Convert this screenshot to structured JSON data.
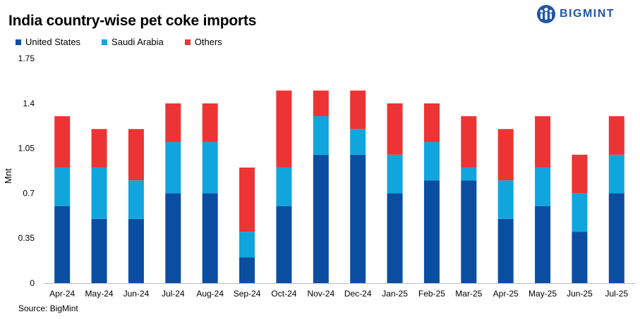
{
  "title": "India country-wise pet coke imports",
  "brand": {
    "name": "BIGMINT",
    "color": "#1f57a8"
  },
  "source": "Source: BigMint",
  "chart_data": {
    "type": "bar",
    "stacked": true,
    "title": "India country-wise pet coke imports",
    "xlabel": "",
    "ylabel": "Mnt",
    "ylim": [
      0,
      1.75
    ],
    "yticks": [
      "0",
      "0.35",
      "0.7",
      "1.05",
      "1.4",
      "1.75"
    ],
    "ytick_values": [
      0,
      0.35,
      0.7,
      1.05,
      1.4,
      1.75
    ],
    "grid": false,
    "legend": "top-left",
    "categories": [
      "Apr-24",
      "May-24",
      "Jun-24",
      "Jul-24",
      "Aug-24",
      "Sep-24",
      "Oct-24",
      "Nov-24",
      "Dec-24",
      "Jan-25",
      "Feb-25",
      "Mar-25",
      "Apr-25",
      "May-25",
      "Jun-25",
      "Jul-25"
    ],
    "series": [
      {
        "name": "United States",
        "color": "#0a4ea2",
        "values": [
          0.6,
          0.5,
          0.5,
          0.7,
          0.7,
          0.2,
          0.6,
          1.0,
          1.0,
          0.7,
          0.8,
          0.8,
          0.5,
          0.6,
          0.4,
          0.7
        ]
      },
      {
        "name": "Saudi Arabia",
        "color": "#10a6dd",
        "values": [
          0.3,
          0.4,
          0.3,
          0.4,
          0.4,
          0.2,
          0.3,
          0.3,
          0.2,
          0.3,
          0.3,
          0.1,
          0.3,
          0.3,
          0.3,
          0.3
        ]
      },
      {
        "name": "Others",
        "color": "#ed3434",
        "values": [
          0.4,
          0.3,
          0.4,
          0.3,
          0.3,
          0.5,
          0.6,
          0.2,
          0.3,
          0.4,
          0.3,
          0.4,
          0.4,
          0.4,
          0.3,
          0.3
        ]
      }
    ]
  }
}
